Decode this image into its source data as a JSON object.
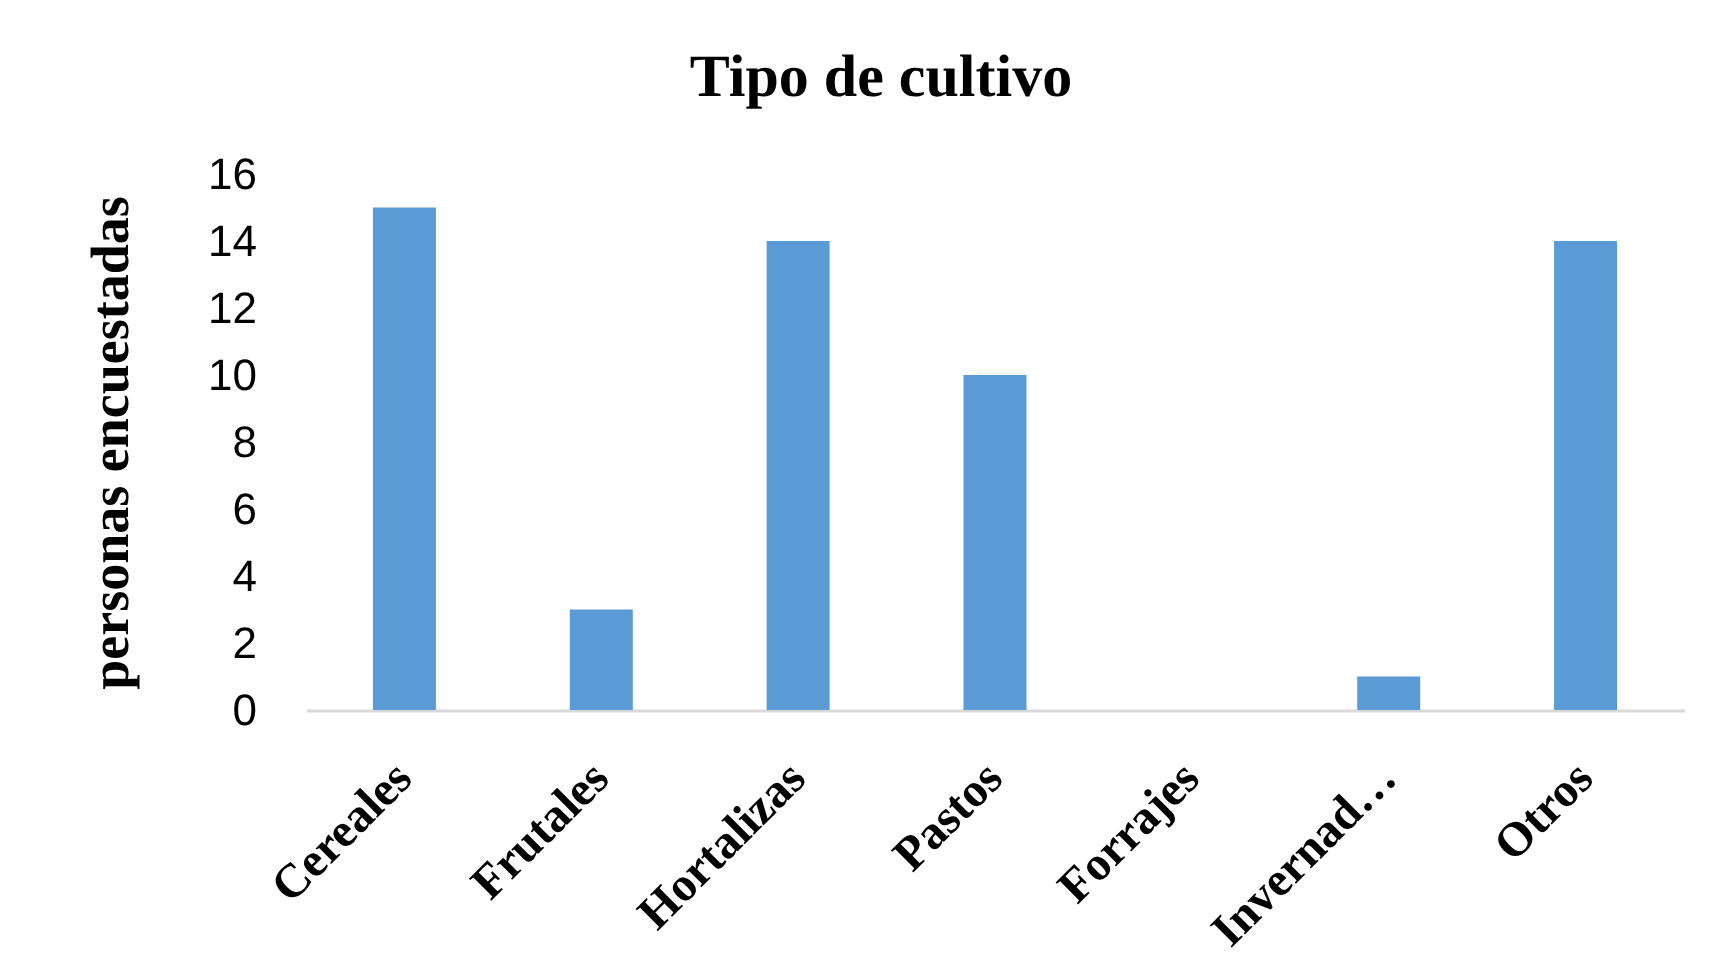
{
  "chart_data": {
    "type": "bar",
    "title": "Tipo de cultivo",
    "ylabel": "personas encuestadas",
    "categories": [
      "Cereales",
      "Frutales",
      "Hortalizas",
      "Pastos",
      "Forrajes",
      "Invernad…",
      "Otros"
    ],
    "values": [
      15,
      3,
      14,
      10,
      0,
      1,
      14
    ],
    "color": "#5b9bd5",
    "ylim": [
      0,
      16
    ],
    "yticks": [
      0,
      2,
      4,
      6,
      8,
      10,
      12,
      14,
      16
    ],
    "grid": false
  }
}
